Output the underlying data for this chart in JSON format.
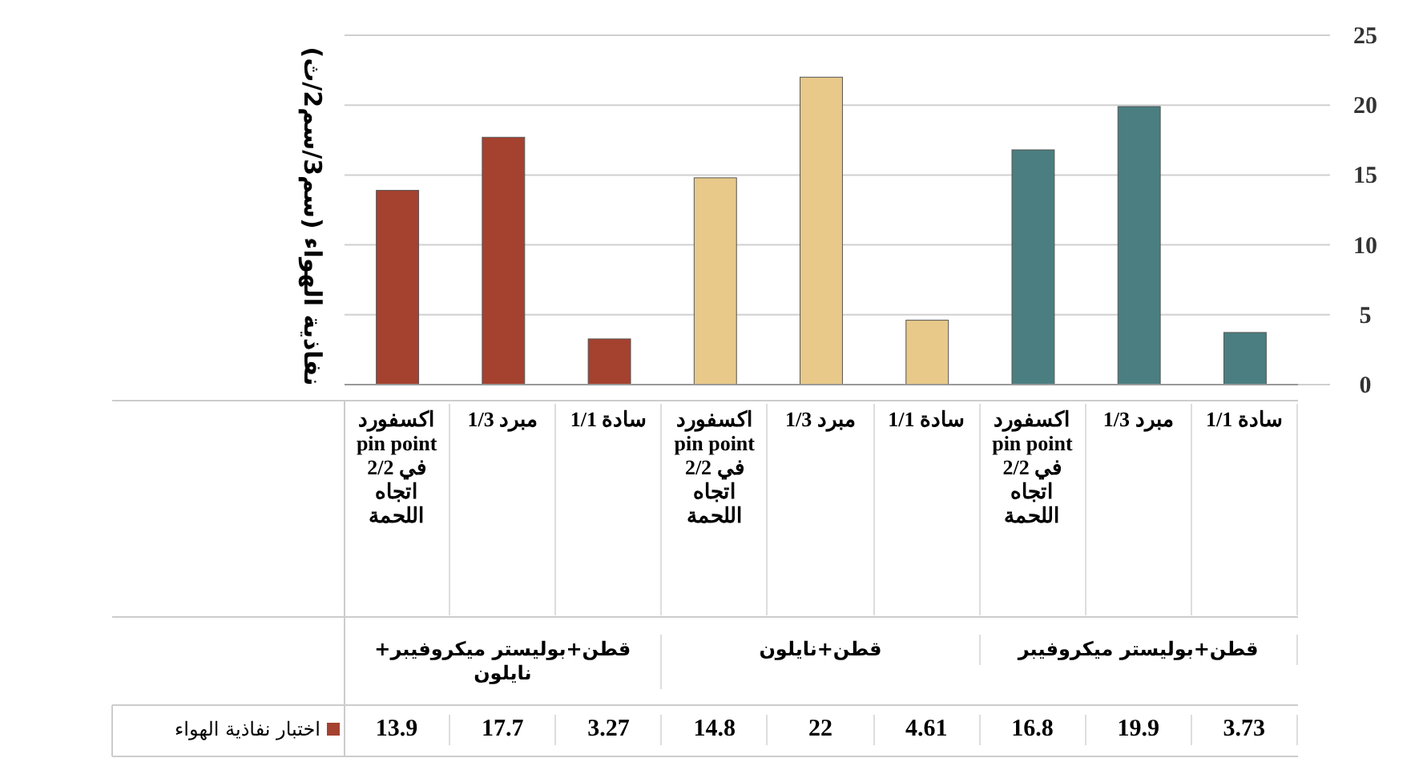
{
  "chart_data": {
    "type": "bar",
    "ylabel": "نفاذية الهواء (سم3/سم2/ث)",
    "categories": [
      "اكسفورد pin point في 2/2 اتجاه اللحمة",
      "مبرد 1/3",
      "سادة 1/1",
      "اكسفورد pin point في 2/2 اتجاه اللحمة",
      "مبرد 1/3",
      "سادة 1/1",
      "اكسفورد pin point في 2/2 اتجاه اللحمة",
      "مبرد 1/3",
      "سادة 1/1"
    ],
    "series": [
      {
        "name": "اختبار نفاذية الهواء",
        "color": "#a5412f",
        "colors": [
          "#a5412f",
          "#a5412f",
          "#a5412f",
          "#e8c98a",
          "#e8c98a",
          "#e8c98a",
          "#4a7e80",
          "#4a7e80",
          "#4a7e80"
        ],
        "values": [
          13.9,
          17.7,
          3.27,
          14.8,
          22,
          4.61,
          16.8,
          19.9,
          3.73
        ]
      }
    ],
    "annotations": [
      "قطن+بوليستر ميكروفيبر+ نايلون",
      "قطن+نايلون",
      "قطن+بوليستر ميكروفيبر"
    ],
    "ylim": [
      0,
      25
    ],
    "yticks": [
      0,
      5,
      10,
      15,
      20,
      25
    ],
    "grid": "y",
    "data_labels": true,
    "legend": "bottom left"
  }
}
